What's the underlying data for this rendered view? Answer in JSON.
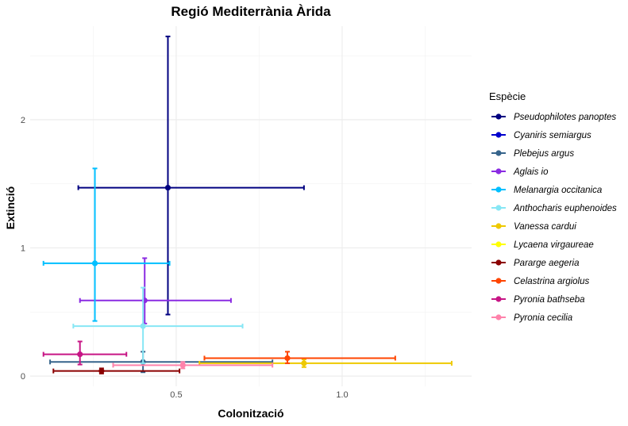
{
  "chart_data": {
    "type": "scatter",
    "title": "Regió Mediterrània Àrida",
    "xlabel": "Colonització",
    "ylabel": "Extinció",
    "xlim": [
      0.06,
      1.39
    ],
    "ylim": [
      -0.08,
      2.73
    ],
    "x_ticks": [
      0.5,
      1.0
    ],
    "x_tick_labels": [
      "0.5",
      "1.0"
    ],
    "y_ticks": [
      0,
      1,
      2
    ],
    "y_tick_labels": [
      "0",
      "1",
      "2"
    ],
    "grid": true,
    "legend": {
      "title": "Espècie",
      "position": "right"
    },
    "series": [
      {
        "name": "Pseudophilotes panoptes",
        "color": "#000080",
        "x": 0.475,
        "y": 1.47,
        "x_low": 0.205,
        "x_high": 0.885,
        "y_low": 0.48,
        "y_high": 2.65
      },
      {
        "name": "Cyaniris semiargus",
        "color": "#0000CD",
        "x": null,
        "y": null
      },
      {
        "name": "Plebejus argus",
        "color": "#36648B",
        "x": 0.4,
        "y": 0.11,
        "x_low": 0.12,
        "x_high": 0.79,
        "y_low": 0.03,
        "y_high": 0.19
      },
      {
        "name": "Aglais io",
        "color": "#8A2BE2",
        "x": 0.405,
        "y": 0.59,
        "x_low": 0.21,
        "x_high": 0.665,
        "y_low": 0.41,
        "y_high": 0.92
      },
      {
        "name": "Melanargia occitanica",
        "color": "#00BFFF",
        "x": 0.255,
        "y": 0.88,
        "x_low": 0.1,
        "x_high": 0.48,
        "y_low": 0.43,
        "y_high": 1.62
      },
      {
        "name": "Anthocharis euphenoides",
        "color": "#87E7F5",
        "x": 0.4,
        "y": 0.39,
        "x_low": 0.19,
        "x_high": 0.7,
        "y_low": 0.1,
        "y_high": 0.69
      },
      {
        "name": "Vanessa cardui",
        "color": "#EEC900",
        "x": 0.885,
        "y": 0.1,
        "x_low": 0.57,
        "x_high": 1.33,
        "y_low": 0.07,
        "y_high": 0.13
      },
      {
        "name": "Lycaena virgaureae",
        "color": "#FFFF00",
        "x": null,
        "y": null
      },
      {
        "name": "Pararge aegeria",
        "color": "#8B0000",
        "x": 0.275,
        "y": 0.04,
        "x_low": 0.13,
        "x_high": 0.51,
        "y_low": 0.02,
        "y_high": 0.06
      },
      {
        "name": "Celastrina argiolus",
        "color": "#FF4500",
        "x": 0.835,
        "y": 0.14,
        "x_low": 0.585,
        "x_high": 1.16,
        "y_low": 0.1,
        "y_high": 0.19
      },
      {
        "name": "Pyronia bathseba",
        "color": "#C71585",
        "x": 0.21,
        "y": 0.17,
        "x_low": 0.1,
        "x_high": 0.35,
        "y_low": 0.09,
        "y_high": 0.27
      },
      {
        "name": "Pyronia cecilia",
        "color": "#FF82AB",
        "x": 0.52,
        "y": 0.085,
        "x_low": 0.31,
        "x_high": 0.79,
        "y_low": 0.06,
        "y_high": 0.11
      }
    ]
  }
}
